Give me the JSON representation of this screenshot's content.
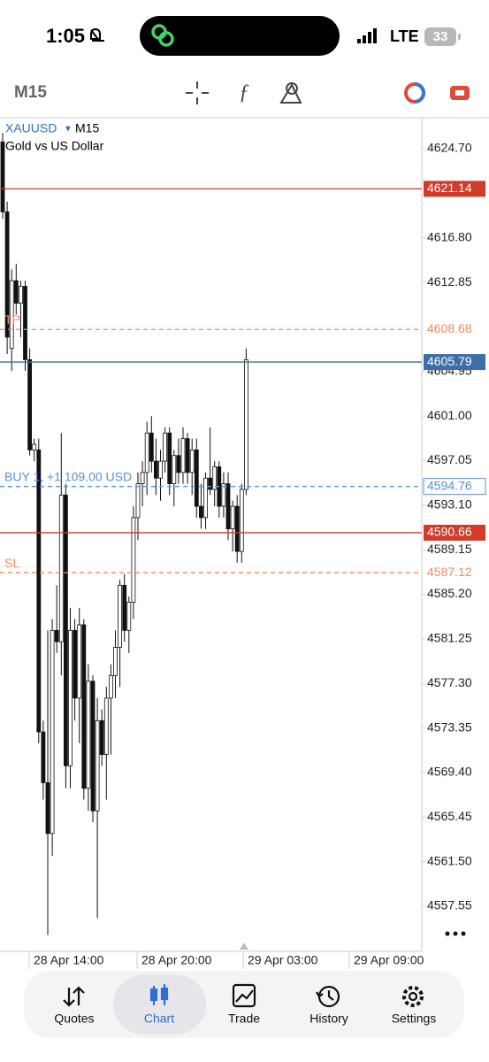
{
  "status_bar": {
    "time": "1:05",
    "network": "LTE",
    "battery": "33"
  },
  "toolbar": {
    "timeframe": "M15"
  },
  "chart": {
    "symbol": "XAUUSD",
    "timeframe": "M15",
    "description": "Gold vs US Dollar",
    "ylim": [
      4553.5,
      4628.2
    ],
    "yticks": [
      {
        "value": 4624.7,
        "label": "4624.70"
      },
      {
        "value": 4616.8,
        "label": "4616.80"
      },
      {
        "value": 4612.85,
        "label": "4612.85"
      },
      {
        "value": 4604.95,
        "label": "4604.95"
      },
      {
        "value": 4601.0,
        "label": "4601.00"
      },
      {
        "value": 4597.05,
        "label": "4597.05"
      },
      {
        "value": 4593.1,
        "label": "4593.10"
      },
      {
        "value": 4589.15,
        "label": "4589.15"
      },
      {
        "value": 4585.2,
        "label": "4585.20"
      },
      {
        "value": 4581.25,
        "label": "4581.25"
      },
      {
        "value": 4577.3,
        "label": "4577.30"
      },
      {
        "value": 4573.35,
        "label": "4573.35"
      },
      {
        "value": 4569.4,
        "label": "4569.40"
      },
      {
        "value": 4565.45,
        "label": "4565.45"
      },
      {
        "value": 4561.5,
        "label": "4561.50"
      },
      {
        "value": 4557.55,
        "label": "4557.55"
      }
    ],
    "xlabels": [
      "28 Apr 14:00",
      "28 Apr 20:00",
      "29 Apr 03:00",
      "29 Apr 09:00"
    ],
    "levels": [
      {
        "price": 4621.14,
        "style": "solid-red"
      },
      {
        "price": 4608.68,
        "style": "tp",
        "label": "TP"
      },
      {
        "price": 4605.79,
        "style": "bid"
      },
      {
        "price": 4594.76,
        "style": "buy",
        "label": "BUY 1, +1 109.00 USD"
      },
      {
        "price": 4590.66,
        "style": "solid-red"
      },
      {
        "price": 4587.12,
        "style": "sl",
        "label": "SL"
      }
    ],
    "candles": [
      {
        "open": 4625.3,
        "high": 4626.1,
        "low": 4618.5,
        "close": 4619.1
      },
      {
        "open": 4619.1,
        "high": 4620.0,
        "low": 4606.5,
        "close": 4608.0
      },
      {
        "open": 4607,
        "high": 4614,
        "low": 4605,
        "close": 4613
      },
      {
        "open": 4613,
        "high": 4614.5,
        "low": 4610,
        "close": 4611
      },
      {
        "open": 4611,
        "high": 4613,
        "low": 4608,
        "close": 4612.5
      },
      {
        "open": 4612.5,
        "high": 4613,
        "low": 4605,
        "close": 4606
      },
      {
        "open": 4606,
        "high": 4607,
        "low": 4597.5,
        "close": 4598
      },
      {
        "open": 4598,
        "high": 4599,
        "low": 4597,
        "close": 4598.5
      },
      {
        "open": 4598,
        "high": 4599,
        "low": 4572,
        "close": 4573
      },
      {
        "open": 4573,
        "high": 4574,
        "low": 4567,
        "close": 4568.5
      },
      {
        "open": 4568.5,
        "high": 4582,
        "low": 4555,
        "close": 4564
      },
      {
        "open": 4564,
        "high": 4583,
        "low": 4562,
        "close": 4582
      },
      {
        "open": 4582,
        "high": 4586,
        "low": 4580,
        "close": 4581
      },
      {
        "open": 4581,
        "high": 4599.5,
        "low": 4578,
        "close": 4594
      },
      {
        "open": 4594,
        "high": 4595,
        "low": 4568,
        "close": 4570
      },
      {
        "open": 4570,
        "high": 4584,
        "low": 4568,
        "close": 4582
      },
      {
        "open": 4582,
        "high": 4583,
        "low": 4574,
        "close": 4576
      },
      {
        "open": 4576,
        "high": 4584,
        "low": 4572,
        "close": 4582.5
      },
      {
        "open": 4582.5,
        "high": 4583,
        "low": 4567,
        "close": 4568
      },
      {
        "open": 4568,
        "high": 4579,
        "low": 4566,
        "close": 4577.5
      },
      {
        "open": 4577.5,
        "high": 4578,
        "low": 4565,
        "close": 4566
      },
      {
        "open": 4566,
        "high": 4576,
        "low": 4556.5,
        "close": 4574
      },
      {
        "open": 4574,
        "high": 4575,
        "low": 4570,
        "close": 4571
      },
      {
        "open": 4571,
        "high": 4577,
        "low": 4567,
        "close": 4576
      },
      {
        "open": 4576,
        "high": 4579,
        "low": 4571,
        "close": 4578
      },
      {
        "open": 4578,
        "high": 4582,
        "low": 4576,
        "close": 4580.5
      },
      {
        "open": 4580.5,
        "high": 4586.5,
        "low": 4577,
        "close": 4586
      },
      {
        "open": 4586,
        "high": 4587,
        "low": 4581,
        "close": 4582
      },
      {
        "open": 4582,
        "high": 4585,
        "low": 4580,
        "close": 4584.5
      },
      {
        "open": 4584.5,
        "high": 4593,
        "low": 4583,
        "close": 4592
      },
      {
        "open": 4592,
        "high": 4596,
        "low": 4590,
        "close": 4595
      },
      {
        "open": 4595,
        "high": 4597,
        "low": 4593,
        "close": 4596
      },
      {
        "open": 4596,
        "high": 4600.5,
        "low": 4594,
        "close": 4599.5
      },
      {
        "open": 4599.5,
        "high": 4601,
        "low": 4596,
        "close": 4597
      },
      {
        "open": 4597,
        "high": 4599,
        "low": 4594,
        "close": 4595.5
      },
      {
        "open": 4595.5,
        "high": 4598,
        "low": 4593.5,
        "close": 4597
      },
      {
        "open": 4597,
        "high": 4600,
        "low": 4596,
        "close": 4599.5
      },
      {
        "open": 4599.5,
        "high": 4600,
        "low": 4594,
        "close": 4595
      },
      {
        "open": 4595,
        "high": 4598,
        "low": 4593,
        "close": 4597.5
      },
      {
        "open": 4597.5,
        "high": 4599,
        "low": 4595,
        "close": 4596
      },
      {
        "open": 4596,
        "high": 4600,
        "low": 4595,
        "close": 4599
      },
      {
        "open": 4599,
        "high": 4599.5,
        "low": 4595,
        "close": 4596
      },
      {
        "open": 4596,
        "high": 4599,
        "low": 4594,
        "close": 4598
      },
      {
        "open": 4598,
        "high": 4599,
        "low": 4592,
        "close": 4593
      },
      {
        "open": 4593,
        "high": 4595,
        "low": 4591,
        "close": 4592
      },
      {
        "open": 4592,
        "high": 4596,
        "low": 4591,
        "close": 4595.5
      },
      {
        "open": 4595.5,
        "high": 4600,
        "low": 4594,
        "close": 4594.5
      },
      {
        "open": 4594.5,
        "high": 4597,
        "low": 4593,
        "close": 4596.5
      },
      {
        "open": 4596.5,
        "high": 4597,
        "low": 4592,
        "close": 4593
      },
      {
        "open": 4593,
        "high": 4596,
        "low": 4592,
        "close": 4595
      },
      {
        "open": 4595,
        "high": 4596,
        "low": 4590,
        "close": 4591
      },
      {
        "open": 4591,
        "high": 4593.5,
        "low": 4589,
        "close": 4593
      },
      {
        "open": 4593,
        "high": 4594,
        "low": 4588,
        "close": 4589
      },
      {
        "open": 4589,
        "high": 4595,
        "low": 4588,
        "close": 4594.5
      },
      {
        "open": 4594.5,
        "high": 4607,
        "low": 4594,
        "close": 4606
      }
    ]
  },
  "tabs": [
    {
      "label": "Quotes"
    },
    {
      "label": "Chart",
      "active": true
    },
    {
      "label": "Trade"
    },
    {
      "label": "History"
    },
    {
      "label": "Settings"
    }
  ]
}
